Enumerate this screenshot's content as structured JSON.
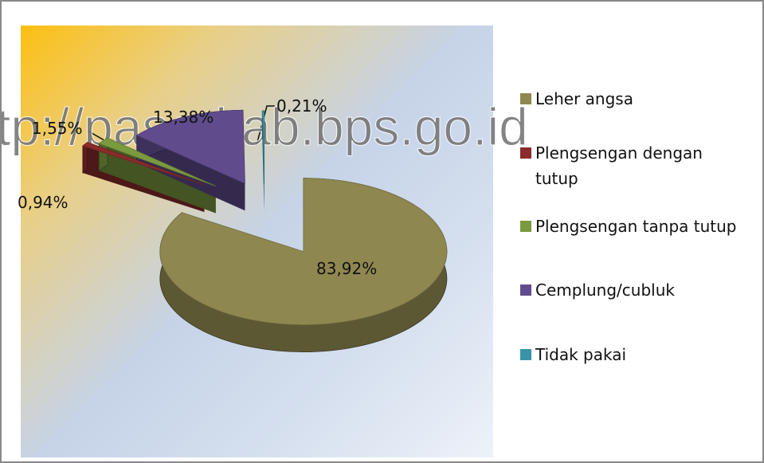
{
  "chart_data": {
    "type": "pie",
    "categories": [
      "Leher angsa",
      "Plengsengan dengan tutup",
      "Plengsengan tanpa tutup",
      "Cemplung/cubluk",
      "Tidak pakai"
    ],
    "values": [
      83.92,
      0.94,
      1.55,
      13.38,
      0.21
    ],
    "value_labels": [
      "83,92%",
      "0,94%",
      "1,55%",
      "13,38%",
      "0,21%"
    ],
    "colors": [
      "#8f8750",
      "#8c2b2b",
      "#7a9a3e",
      "#604c8d",
      "#3a94a8"
    ],
    "legend": "right",
    "annotation": "http://paserkab.bps.go.id"
  }
}
